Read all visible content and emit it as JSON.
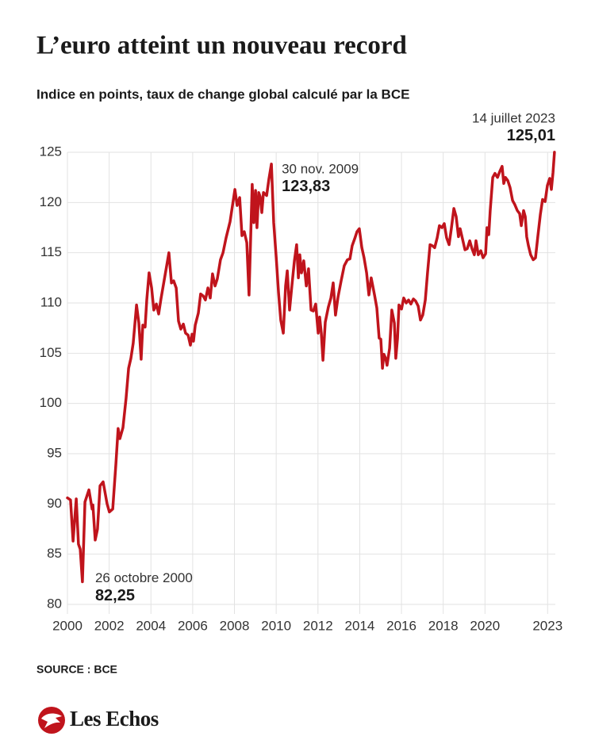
{
  "chart_data": {
    "type": "line",
    "title": "L’euro atteint un nouveau record",
    "subtitle": "Indice en points, taux de change global calculé par la BCE",
    "source": "SOURCE : BCE",
    "brand": "Les Echos",
    "color": "#c0141c",
    "grid": true,
    "xlim": [
      2000,
      2023.37
    ],
    "ylim": [
      80,
      125
    ],
    "xticks": [
      2000,
      2002,
      2004,
      2006,
      2008,
      2010,
      2012,
      2014,
      2016,
      2018,
      2020,
      2023
    ],
    "yticks": [
      80,
      85,
      90,
      95,
      100,
      105,
      110,
      115,
      120,
      125
    ],
    "x": [
      2000.0,
      2000.15,
      2000.27,
      2000.42,
      2000.53,
      2000.61,
      2000.72,
      2000.84,
      2001.03,
      2001.18,
      2001.22,
      2001.33,
      2001.44,
      2001.56,
      2001.71,
      2001.9,
      2002.01,
      2002.17,
      2002.32,
      2002.43,
      2002.51,
      2002.66,
      2002.81,
      2002.93,
      2003.04,
      2003.15,
      2003.31,
      2003.42,
      2003.53,
      2003.61,
      2003.72,
      2003.8,
      2003.91,
      2004.03,
      2004.14,
      2004.26,
      2004.37,
      2004.48,
      2004.67,
      2004.86,
      2004.98,
      2005.09,
      2005.21,
      2005.32,
      2005.43,
      2005.55,
      2005.66,
      2005.78,
      2005.89,
      2005.97,
      2006.04,
      2006.12,
      2006.27,
      2006.38,
      2006.5,
      2006.61,
      2006.73,
      2006.84,
      2006.95,
      2007.07,
      2007.18,
      2007.33,
      2007.45,
      2007.6,
      2007.79,
      2008.02,
      2008.13,
      2008.25,
      2008.36,
      2008.47,
      2008.59,
      2008.7,
      2008.85,
      2008.93,
      2009.01,
      2009.08,
      2009.16,
      2009.23,
      2009.31,
      2009.39,
      2009.54,
      2009.65,
      2009.77,
      2009.88,
      2010.0,
      2010.11,
      2010.22,
      2010.34,
      2010.45,
      2010.53,
      2010.64,
      2010.75,
      2010.87,
      2010.98,
      2011.06,
      2011.13,
      2011.21,
      2011.32,
      2011.44,
      2011.55,
      2011.67,
      2011.78,
      2011.89,
      2012.01,
      2012.08,
      2012.16,
      2012.24,
      2012.35,
      2012.5,
      2012.62,
      2012.73,
      2012.84,
      2012.96,
      2013.11,
      2013.26,
      2013.41,
      2013.53,
      2013.64,
      2013.76,
      2013.87,
      2013.98,
      2014.1,
      2014.21,
      2014.33,
      2014.44,
      2014.55,
      2014.71,
      2014.82,
      2014.93,
      2015.01,
      2015.09,
      2015.16,
      2015.24,
      2015.31,
      2015.43,
      2015.54,
      2015.66,
      2015.73,
      2015.81,
      2015.88,
      2016.0,
      2016.11,
      2016.23,
      2016.34,
      2016.45,
      2016.57,
      2016.68,
      2016.8,
      2016.91,
      2017.02,
      2017.14,
      2017.25,
      2017.37,
      2017.48,
      2017.59,
      2017.71,
      2017.82,
      2017.94,
      2018.05,
      2018.16,
      2018.28,
      2018.39,
      2018.51,
      2018.62,
      2018.73,
      2018.81,
      2018.92,
      2019.04,
      2019.15,
      2019.27,
      2019.38,
      2019.49,
      2019.57,
      2019.68,
      2019.8,
      2019.91,
      2020.03,
      2020.1,
      2020.18,
      2020.25,
      2020.37,
      2020.48,
      2020.6,
      2020.71,
      2020.82,
      2020.9,
      2020.98,
      2021.09,
      2021.2,
      2021.32,
      2021.43,
      2021.55,
      2021.66,
      2021.74,
      2021.85,
      2021.93,
      2022.0,
      2022.08,
      2022.19,
      2022.31,
      2022.42,
      2022.53,
      2022.65,
      2022.76,
      2022.88,
      2022.99,
      2023.1,
      2023.18,
      2023.26,
      2023.33
    ],
    "values": [
      90.6,
      90.4,
      86.3,
      90.5,
      86,
      85.5,
      82.25,
      90.2,
      91.4,
      89.5,
      89.9,
      86.4,
      87.5,
      91.8,
      92.2,
      90,
      89.2,
      89.5,
      94,
      97.5,
      96.5,
      97.6,
      100.5,
      103.5,
      104.5,
      106,
      109.8,
      108,
      104.4,
      107.8,
      107.6,
      110.3,
      113,
      111.5,
      109.3,
      109.9,
      108.9,
      110.4,
      112.7,
      115,
      112,
      112.2,
      111.5,
      108.2,
      107.4,
      107.9,
      107,
      106.8,
      105.8,
      106.9,
      106.2,
      107.8,
      109,
      110.9,
      110.7,
      110.3,
      111.5,
      110.5,
      112.9,
      111.7,
      112.4,
      114.3,
      115,
      116.5,
      118.1,
      121.3,
      119.7,
      120.5,
      116.7,
      117.1,
      116,
      110.8,
      121.8,
      118,
      121.2,
      117.5,
      121,
      120.6,
      119,
      121,
      120.7,
      122.3,
      123.83,
      118,
      114.5,
      111,
      108.3,
      107,
      111.7,
      113.2,
      109.3,
      111.7,
      114.2,
      115.8,
      112.5,
      114.8,
      113,
      114.2,
      111.7,
      113.4,
      109.3,
      109.2,
      109.9,
      107,
      108.6,
      107,
      104.3,
      108.1,
      109.6,
      110.5,
      112,
      108.8,
      110.6,
      112.2,
      113.7,
      114.3,
      114.4,
      115.7,
      116.4,
      117.1,
      117.4,
      115.5,
      114.5,
      113,
      110.8,
      112.5,
      110.8,
      109.5,
      106.5,
      106.4,
      103.5,
      104.9,
      104.5,
      103.8,
      105.5,
      109.3,
      108,
      104.5,
      106.5,
      109.8,
      109.4,
      110.5,
      110,
      110.3,
      109.9,
      110.4,
      110.2,
      109.7,
      108.3,
      108.8,
      110.3,
      113,
      115.8,
      115.7,
      115.5,
      116.5,
      117.7,
      117.5,
      117.9,
      116.5,
      115.8,
      117.4,
      119.4,
      118.6,
      116.6,
      117.4,
      116.4,
      115.3,
      115.4,
      116.2,
      115.4,
      114.8,
      116.2,
      114.8,
      115.2,
      114.5,
      114.9,
      117.5,
      116.8,
      119.2,
      122.5,
      122.9,
      122.5,
      123.1,
      123.6,
      121.9,
      122.5,
      122.2,
      121.5,
      120.2,
      119.8,
      119.2,
      118.9,
      117.7,
      119.2,
      118.6,
      116.6,
      115.7,
      114.8,
      114.3,
      114.5,
      116.6,
      118.8,
      120.3,
      120.1,
      121.7,
      122.4,
      121.3,
      123,
      125.01
    ],
    "annotations": [
      {
        "text": "14 juillet 2023",
        "x": 2023.33,
        "value": 125.01,
        "value_label": "125,01"
      },
      {
        "text": "30 nov. 2009",
        "x": 2009.77,
        "value": 123.83,
        "value_label": "123,83"
      },
      {
        "text": "26 octobre 2000",
        "x": 2000.72,
        "value": 82.25,
        "value_label": "82,25"
      }
    ]
  }
}
